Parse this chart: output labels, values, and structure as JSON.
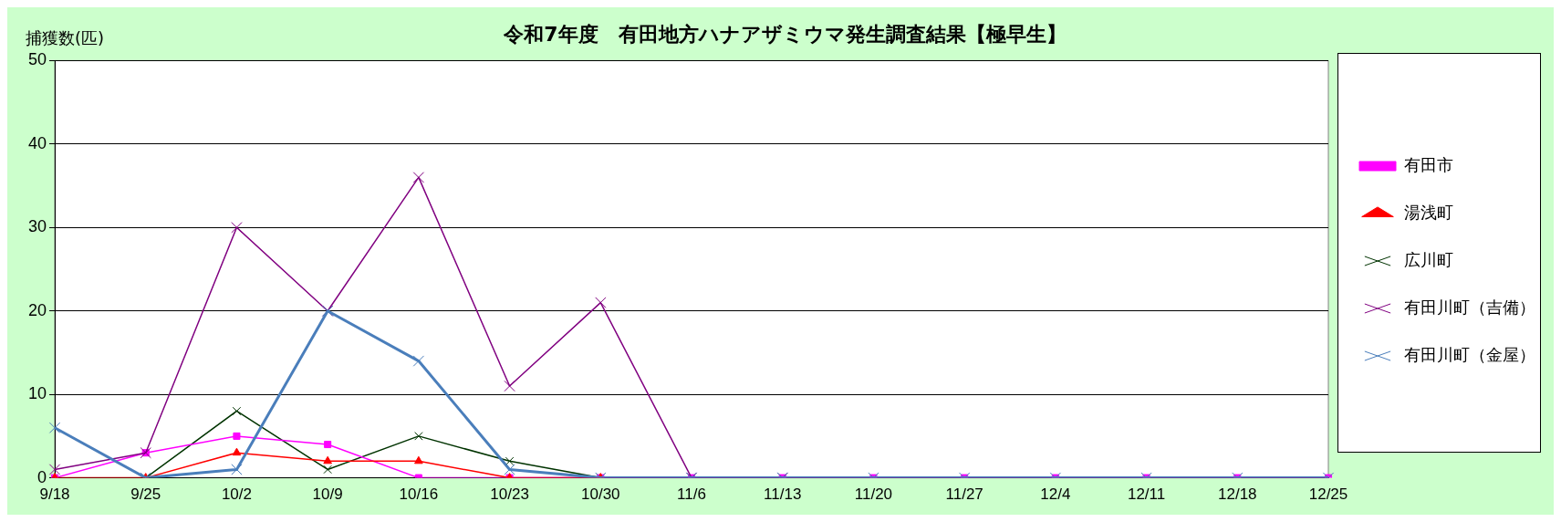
{
  "chart_data": {
    "type": "line",
    "title": "令和7年度　有田地方ハナアザミウマ発生調査結果【極早生】",
    "ylabel": "捕獲数(匹)",
    "categories": [
      "9/18",
      "9/25",
      "10/2",
      "10/9",
      "10/16",
      "10/23",
      "10/30",
      "11/6",
      "11/13",
      "11/20",
      "11/27",
      "12/4",
      "12/11",
      "12/18",
      "12/25"
    ],
    "series": [
      {
        "name": "有田市",
        "color": "#ff00ff",
        "marker": "square",
        "values": [
          0,
          3,
          5,
          4,
          0,
          0,
          0,
          0,
          0,
          0,
          0,
          0,
          0,
          0,
          0
        ]
      },
      {
        "name": "湯浅町",
        "color": "#ff0000",
        "marker": "triangle",
        "values": [
          0,
          0,
          3,
          2,
          2,
          0,
          0,
          null,
          null,
          null,
          null,
          null,
          null,
          null,
          null
        ]
      },
      {
        "name": "広川町",
        "color": "#003300",
        "marker": "cross",
        "values": [
          null,
          0,
          8,
          1,
          5,
          2,
          0,
          null,
          null,
          null,
          null,
          null,
          null,
          null,
          null
        ]
      },
      {
        "name": "有田川町（吉備）",
        "color": "#800080",
        "marker": "cross",
        "values": [
          1,
          3,
          30,
          20,
          36,
          11,
          21,
          0,
          0,
          null,
          null,
          null,
          null,
          null,
          null
        ]
      },
      {
        "name": "有田川町（金屋）",
        "color": "#4a7ebb",
        "marker": "cross",
        "values": [
          6,
          0,
          1,
          20,
          14,
          1,
          0,
          0,
          0,
          0,
          0,
          0,
          0,
          0,
          0
        ]
      }
    ],
    "ylim": [
      0,
      50
    ],
    "yticks": [
      0,
      10,
      20,
      30,
      40,
      50
    ],
    "grid": "y",
    "legend": "right"
  }
}
